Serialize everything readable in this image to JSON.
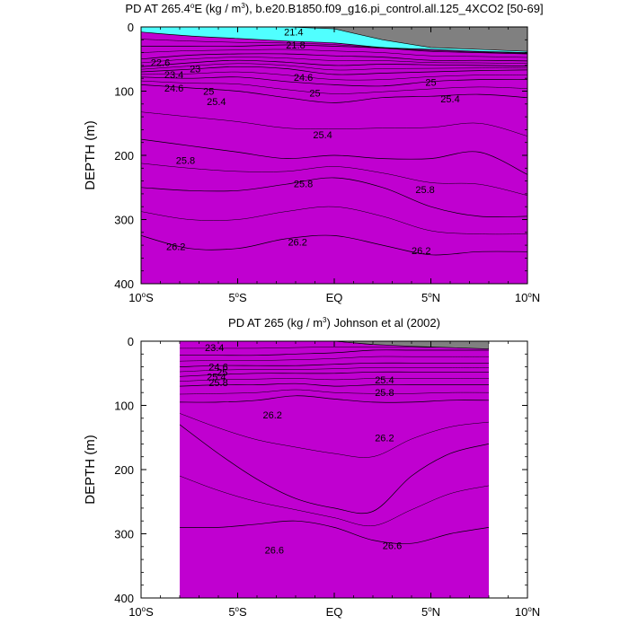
{
  "chart_data": [
    {
      "type": "contour",
      "title_prefix": "PD AT 265.4",
      "title_deg": "o",
      "title_mid": "E (kg / m",
      "title_sup": "3",
      "title_suffix": "), b.e20.B1850.f09_g16.pi_control.all.125_4XCO2 [50-69]",
      "ylabel": "DEPTH (m)",
      "xlabel": "",
      "xlim": [
        -10,
        10
      ],
      "ylim": [
        0,
        400
      ],
      "x_ticks": [
        {
          "value": -10,
          "num": "10",
          "hemi": "S"
        },
        {
          "value": -5,
          "num": "5",
          "hemi": "S"
        },
        {
          "value": 0,
          "num": "EQ",
          "hemi": ""
        },
        {
          "value": 5,
          "num": "5",
          "hemi": "N"
        },
        {
          "value": 10,
          "num": "10",
          "hemi": "N"
        }
      ],
      "y_ticks": [
        0,
        100,
        200,
        300,
        400
      ],
      "bands": [
        {
          "color": "#ff0000",
          "depth": [
            400,
            400,
            400,
            400,
            400,
            400,
            400,
            400,
            400
          ]
        },
        {
          "color": "#ff4010",
          "depth": [
            325,
            345,
            345,
            330,
            325,
            340,
            355,
            350,
            350
          ]
        },
        {
          "color": "#f08a10",
          "depth": [
            250,
            255,
            255,
            245,
            235,
            250,
            280,
            295,
            295
          ]
        },
        {
          "color": "#f4a232",
          "depth": [
            175,
            185,
            195,
            205,
            200,
            205,
            205,
            195,
            230
          ]
        },
        {
          "color": "#fcc040",
          "depth": [
            90,
            95,
            100,
            110,
            118,
            110,
            108,
            105,
            110
          ]
        },
        {
          "color": "#fce05a",
          "depth": [
            78,
            80,
            78,
            85,
            90,
            92,
            85,
            82,
            82
          ]
        },
        {
          "color": "#c8f040",
          "depth": [
            70,
            66,
            62,
            65,
            74,
            72,
            70,
            68,
            67
          ]
        },
        {
          "color": "#40e080",
          "depth": [
            62,
            56,
            52,
            55,
            60,
            58,
            59,
            60,
            61
          ]
        },
        {
          "color": "#20c0d8",
          "depth": [
            50,
            44,
            42,
            42,
            45,
            47,
            52,
            52,
            53
          ]
        },
        {
          "color": "#1040ff",
          "depth": [
            30,
            30,
            30,
            28,
            30,
            33,
            38,
            40,
            42
          ]
        },
        {
          "color": "#c000d0",
          "depth": [
            8,
            14,
            18,
            22,
            25,
            32,
            35,
            38,
            40
          ]
        }
      ],
      "bg_color": "#50ffff",
      "land": {
        "color": "#808080",
        "depth": [
          0,
          0,
          0,
          0,
          3,
          20,
          32,
          35,
          38
        ]
      },
      "labels": [
        {
          "text": "21.4",
          "x": -2.1,
          "depth": 8
        },
        {
          "text": "21.8",
          "x": -2.0,
          "depth": 28
        },
        {
          "text": "22.6",
          "x": -9.0,
          "depth": 55
        },
        {
          "text": "23",
          "x": -7.2,
          "depth": 65
        },
        {
          "text": "23.4",
          "x": -8.3,
          "depth": 74
        },
        {
          "text": "24.6",
          "x": -8.3,
          "depth": 95
        },
        {
          "text": "24.6",
          "x": -1.6,
          "depth": 78
        },
        {
          "text": "25",
          "x": -6.5,
          "depth": 100
        },
        {
          "text": "25",
          "x": -1.0,
          "depth": 103
        },
        {
          "text": "25.4",
          "x": -6.1,
          "depth": 116
        },
        {
          "text": "25",
          "x": 5.0,
          "depth": 86
        },
        {
          "text": "25.4",
          "x": 6.0,
          "depth": 112
        },
        {
          "text": "25.4",
          "x": -0.6,
          "depth": 168
        },
        {
          "text": "25.8",
          "x": -7.7,
          "depth": 208
        },
        {
          "text": "25.8",
          "x": -1.6,
          "depth": 244
        },
        {
          "text": "25.8",
          "x": 4.7,
          "depth": 253
        },
        {
          "text": "26.2",
          "x": -8.2,
          "depth": 342
        },
        {
          "text": "26.2",
          "x": -1.9,
          "depth": 335
        },
        {
          "text": "26.2",
          "x": 4.5,
          "depth": 348
        }
      ]
    },
    {
      "type": "contour",
      "title_prefix": "PD AT 265",
      "title_deg": "",
      "title_mid": " (kg / m",
      "title_sup": "3",
      "title_suffix": ") Johnson et al (2002)",
      "ylabel": "DEPTH (m)",
      "xlabel": "",
      "xlim": [
        -10,
        10
      ],
      "ylim": [
        0,
        400
      ],
      "data_xrange": [
        -8,
        8
      ],
      "x_ticks": [
        {
          "value": -10,
          "num": "10",
          "hemi": "S"
        },
        {
          "value": -5,
          "num": "5",
          "hemi": "S"
        },
        {
          "value": 0,
          "num": "EQ",
          "hemi": ""
        },
        {
          "value": 5,
          "num": "5",
          "hemi": "N"
        },
        {
          "value": 10,
          "num": "10",
          "hemi": "N"
        }
      ],
      "y_ticks": [
        0,
        100,
        200,
        300,
        400
      ],
      "bands": [
        {
          "color": "#c80000",
          "depth": [
            400,
            400,
            400,
            400,
            400,
            400,
            400,
            400,
            400
          ]
        },
        {
          "color": "#e80000",
          "depth": [
            290,
            290,
            285,
            280,
            290,
            310,
            315,
            300,
            290
          ]
        },
        {
          "color": "#ff0000",
          "depth": [
            130,
            175,
            215,
            245,
            260,
            265,
            210,
            175,
            160
          ]
        },
        {
          "color": "#f04010",
          "depth": [
            95,
            95,
            92,
            85,
            90,
            95,
            95,
            92,
            92
          ]
        },
        {
          "color": "#f08a10",
          "depth": [
            70,
            68,
            68,
            66,
            70,
            68,
            68,
            68,
            68
          ]
        },
        {
          "color": "#fcc040",
          "depth": [
            55,
            52,
            50,
            50,
            50,
            48,
            48,
            48,
            48
          ]
        },
        {
          "color": "#c8f040",
          "depth": [
            40,
            38,
            38,
            38,
            36,
            34,
            34,
            34,
            34
          ]
        },
        {
          "color": "#20c0d8",
          "depth": [
            22,
            22,
            22,
            20,
            18,
            14,
            14,
            14,
            14
          ]
        },
        {
          "color": "#c000d0",
          "depth": [
            0,
            0,
            0,
            0,
            0,
            5,
            5,
            5,
            5
          ]
        }
      ],
      "bg_color": "#40e8f0",
      "land": {
        "color": "#808080",
        "depth": [
          0,
          0,
          0,
          0,
          0,
          5,
          8,
          10,
          12
        ]
      },
      "labels": [
        {
          "text": "23.4",
          "x": -6.2,
          "depth": 10
        },
        {
          "text": "24.6",
          "x": -6.0,
          "depth": 40
        },
        {
          "text": "25",
          "x": -5.8,
          "depth": 48
        },
        {
          "text": "25.4",
          "x": -6.1,
          "depth": 55
        },
        {
          "text": "25.8",
          "x": -6.0,
          "depth": 64
        },
        {
          "text": "25.4",
          "x": 2.6,
          "depth": 60
        },
        {
          "text": "25.8",
          "x": 2.6,
          "depth": 80
        },
        {
          "text": "26.2",
          "x": -3.2,
          "depth": 115
        },
        {
          "text": "26.2",
          "x": 2.6,
          "depth": 150
        },
        {
          "text": "26.6",
          "x": -3.1,
          "depth": 325
        },
        {
          "text": "26.6",
          "x": 3.0,
          "depth": 318
        }
      ]
    }
  ]
}
